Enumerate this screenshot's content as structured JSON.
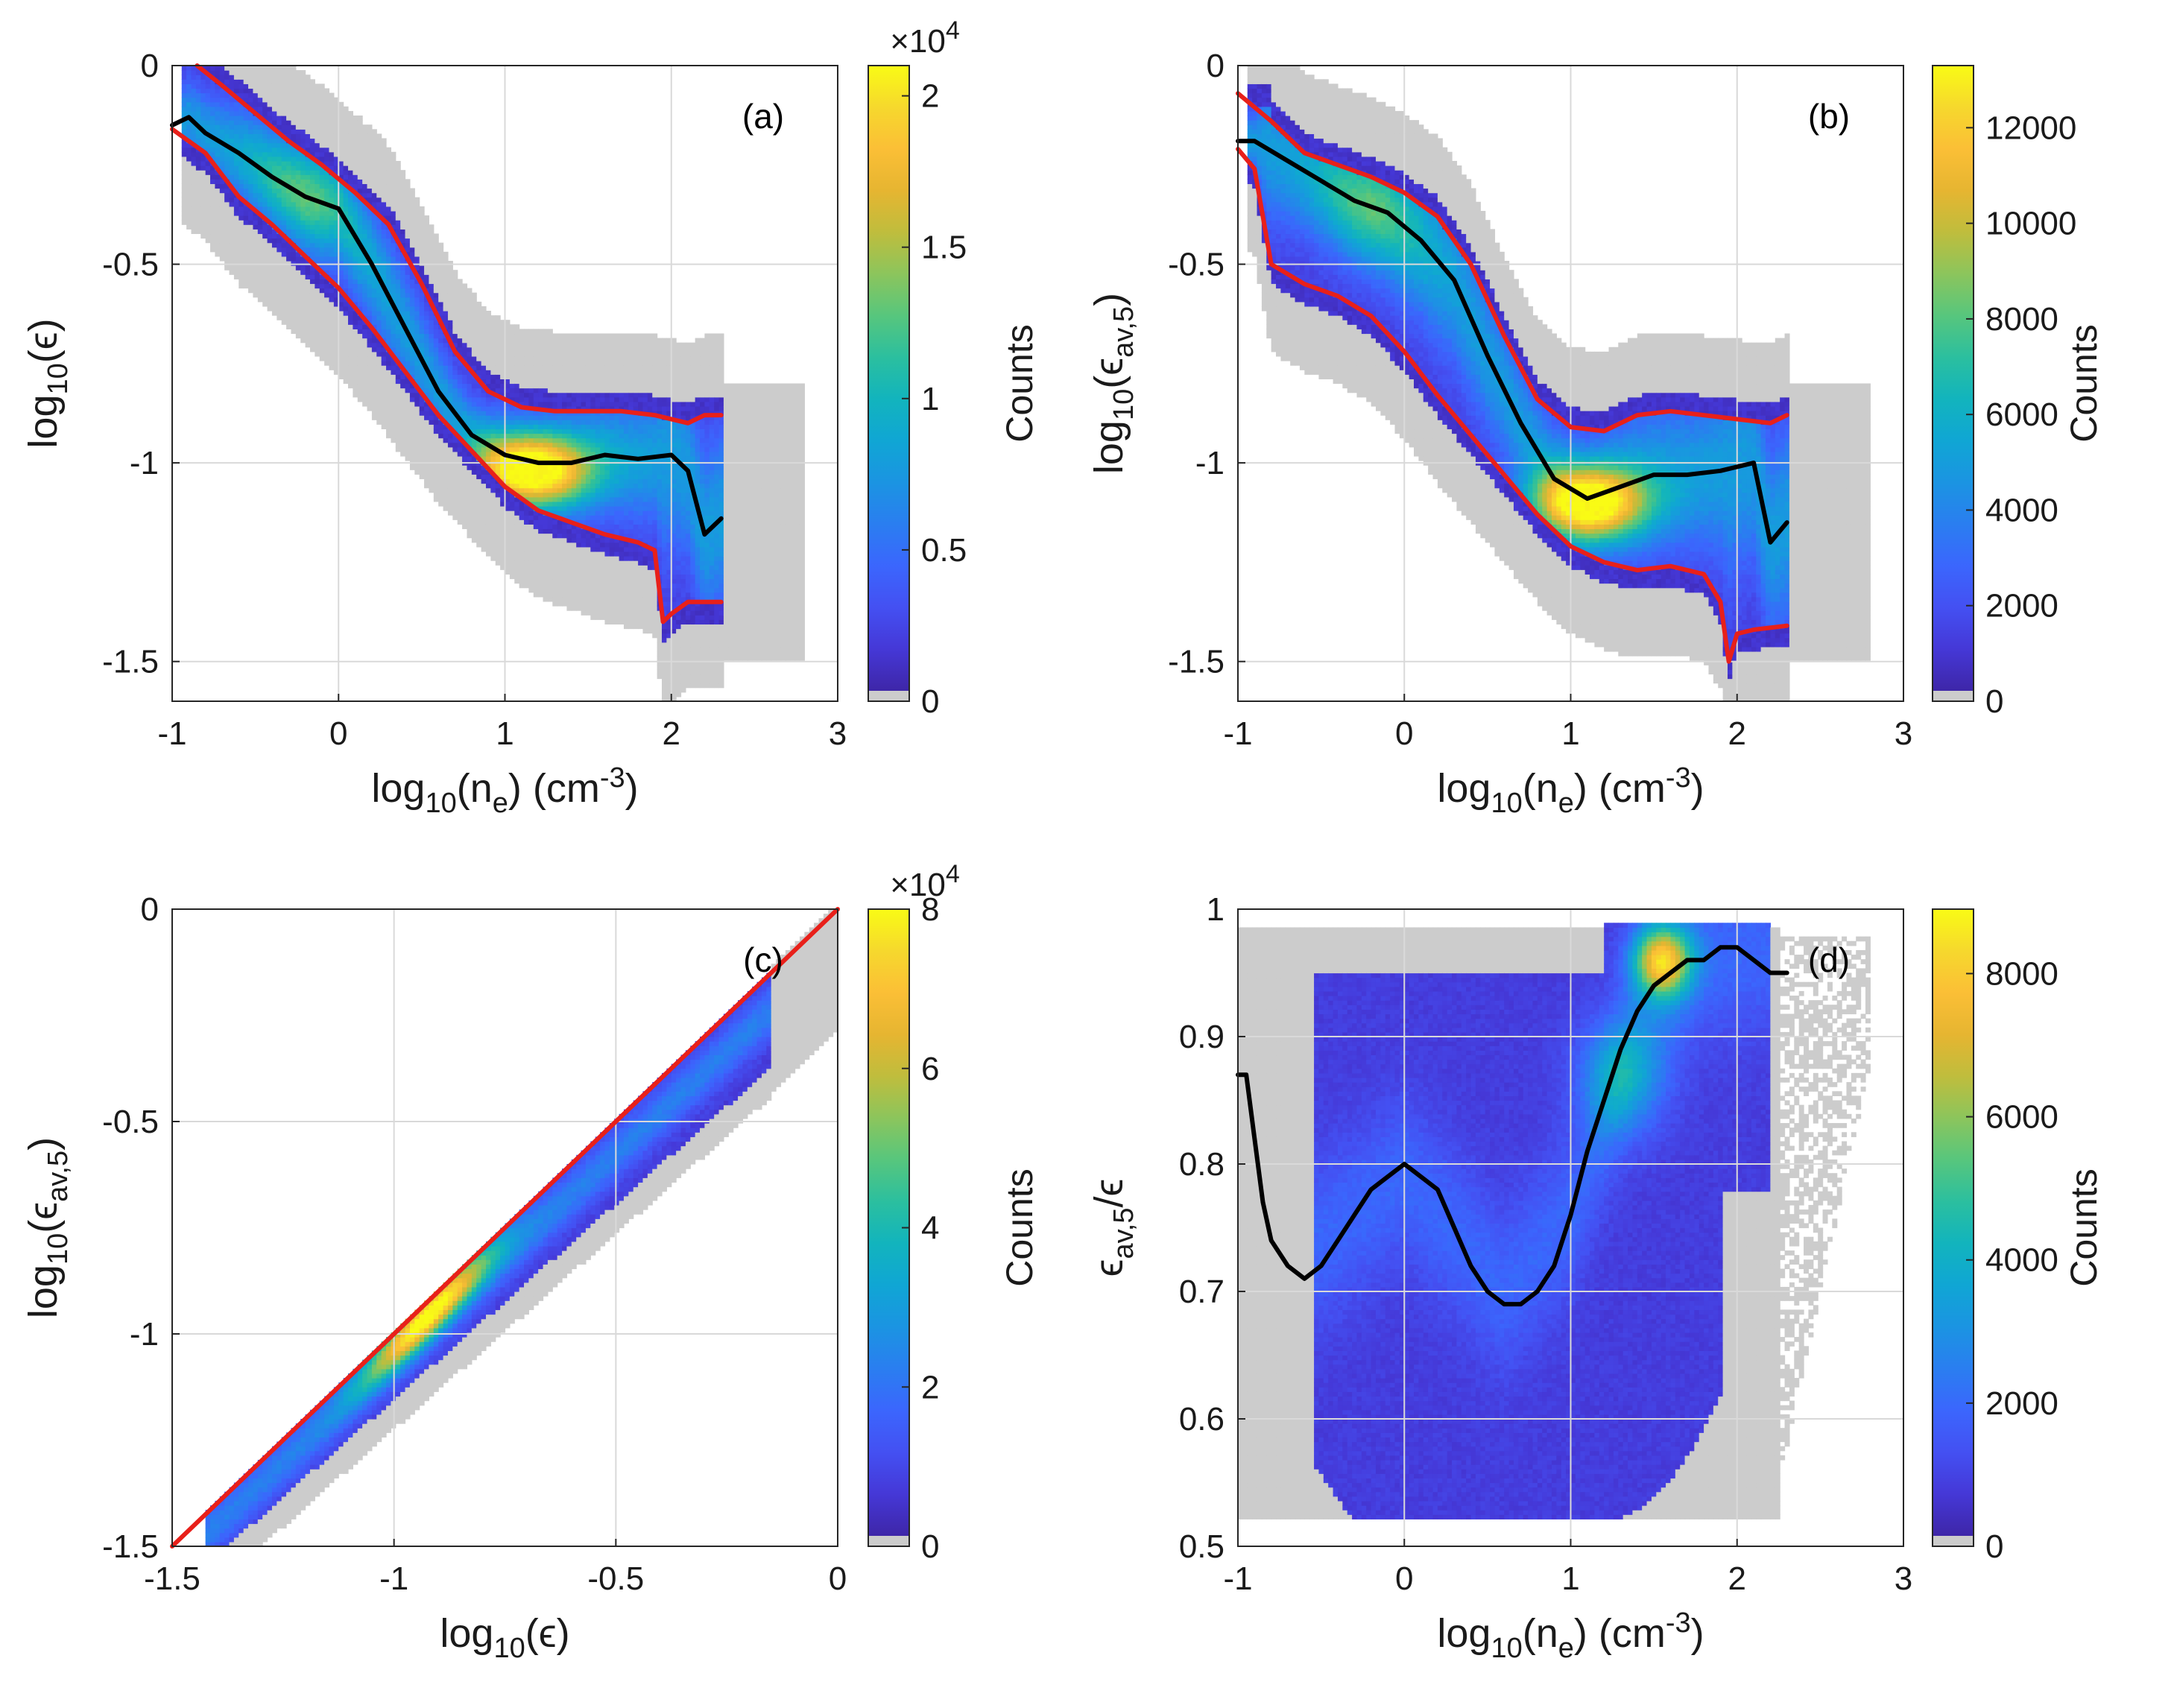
{
  "colors": {
    "background_bin": "#cccccc",
    "median_line": "#000000",
    "percentile_line": "#e8201a",
    "identity_line": "#e8201a",
    "parula": [
      "#3e26a8",
      "#4538d7",
      "#4450f2",
      "#3b66fd",
      "#2a7ef0",
      "#1b94e2",
      "#10a6d4",
      "#12b4bd",
      "#2bbf9f",
      "#57c67d",
      "#8cc55c",
      "#bfbd3d",
      "#e6b531",
      "#fbbf36",
      "#f6d82d",
      "#f9fb15"
    ]
  },
  "chart_data": [
    {
      "id": "a",
      "type": "heatmap",
      "panel_label": "(a)",
      "xlabel": {
        "base": "log",
        "sub": "10",
        "arg": "(n",
        "argsub": "e",
        "unit": ") (cm",
        "unitsup": "-3",
        "close": ")"
      },
      "ylabel": {
        "base": "log",
        "sub": "10",
        "arg": "(ϵ)"
      },
      "xlim": [
        -1,
        3
      ],
      "ylim": [
        -1.6,
        0
      ],
      "xticks": [
        "-1",
        "0",
        "1",
        "2",
        "3"
      ],
      "xtick_values": [
        -1,
        0,
        1,
        2,
        3
      ],
      "yticks": [
        "-1.5",
        "-1",
        "-0.5",
        "0"
      ],
      "ytick_values": [
        -1.5,
        -1,
        -0.5,
        0
      ],
      "colorbar": {
        "label": "Counts",
        "max": 21000,
        "ticks": [
          "0",
          "0.5",
          "1",
          "1.5",
          "2"
        ],
        "tick_values": [
          0,
          5000,
          10000,
          15000,
          20000
        ],
        "multiplier": "×10",
        "multiplier_exp": "4"
      },
      "median_line": {
        "x": [
          -1.0,
          -0.9,
          -0.8,
          -0.6,
          -0.4,
          -0.2,
          0.0,
          0.2,
          0.4,
          0.6,
          0.8,
          1.0,
          1.2,
          1.4,
          1.6,
          1.8,
          2.0,
          2.1,
          2.2,
          2.3
        ],
        "y": [
          -0.15,
          -0.13,
          -0.17,
          -0.22,
          -0.28,
          -0.33,
          -0.36,
          -0.5,
          -0.66,
          -0.82,
          -0.93,
          -0.98,
          -1.0,
          -1.0,
          -0.98,
          -0.99,
          -0.98,
          -1.02,
          -1.18,
          -1.14
        ]
      },
      "upper_line": {
        "x": [
          -0.85,
          -0.7,
          -0.5,
          -0.3,
          -0.1,
          0.1,
          0.3,
          0.5,
          0.7,
          0.9,
          1.1,
          1.3,
          1.5,
          1.7,
          1.9,
          2.1,
          2.2,
          2.3
        ],
        "y": [
          0.0,
          -0.05,
          -0.12,
          -0.19,
          -0.25,
          -0.32,
          -0.4,
          -0.55,
          -0.72,
          -0.82,
          -0.86,
          -0.87,
          -0.87,
          -0.87,
          -0.88,
          -0.9,
          -0.88,
          -0.88
        ]
      },
      "lower_line": {
        "x": [
          -1.0,
          -0.8,
          -0.6,
          -0.4,
          -0.2,
          0.0,
          0.2,
          0.4,
          0.6,
          0.8,
          1.0,
          1.2,
          1.4,
          1.6,
          1.8,
          1.9,
          1.95,
          2.0,
          2.1,
          2.3
        ],
        "y": [
          -0.16,
          -0.22,
          -0.33,
          -0.4,
          -0.48,
          -0.56,
          -0.66,
          -0.77,
          -0.88,
          -0.97,
          -1.06,
          -1.12,
          -1.15,
          -1.18,
          -1.2,
          -1.22,
          -1.4,
          -1.38,
          -1.35,
          -1.35
        ]
      }
    },
    {
      "id": "b",
      "type": "heatmap",
      "panel_label": "(b)",
      "xlabel": {
        "base": "log",
        "sub": "10",
        "arg": "(n",
        "argsub": "e",
        "unit": ") (cm",
        "unitsup": "-3",
        "close": ")"
      },
      "ylabel": {
        "base": "log",
        "sub": "10",
        "arg": "(ϵ",
        "argsub": "av,5",
        "close": ")"
      },
      "xlim": [
        -1,
        3
      ],
      "ylim": [
        -1.6,
        0
      ],
      "xticks": [
        "-1",
        "0",
        "1",
        "2",
        "3"
      ],
      "xtick_values": [
        -1,
        0,
        1,
        2,
        3
      ],
      "yticks": [
        "-1.5",
        "-1",
        "-0.5",
        "0"
      ],
      "ytick_values": [
        -1.5,
        -1,
        -0.5,
        0
      ],
      "colorbar": {
        "label": "Counts",
        "max": 13300,
        "ticks": [
          "0",
          "2000",
          "4000",
          "6000",
          "8000",
          "10000",
          "12000"
        ],
        "tick_values": [
          0,
          2000,
          4000,
          6000,
          8000,
          10000,
          12000
        ]
      },
      "median_line": {
        "x": [
          -1.0,
          -0.9,
          -0.7,
          -0.5,
          -0.3,
          -0.1,
          0.1,
          0.3,
          0.5,
          0.7,
          0.9,
          1.1,
          1.3,
          1.5,
          1.7,
          1.9,
          2.1,
          2.2,
          2.3
        ],
        "y": [
          -0.19,
          -0.19,
          -0.24,
          -0.29,
          -0.34,
          -0.37,
          -0.44,
          -0.54,
          -0.73,
          -0.9,
          -1.04,
          -1.09,
          -1.06,
          -1.03,
          -1.03,
          -1.02,
          -1.0,
          -1.2,
          -1.15
        ]
      },
      "upper_line": {
        "x": [
          -1.0,
          -0.8,
          -0.6,
          -0.4,
          -0.2,
          0.0,
          0.2,
          0.4,
          0.6,
          0.8,
          1.0,
          1.2,
          1.4,
          1.6,
          1.8,
          2.0,
          2.2,
          2.3
        ],
        "y": [
          -0.07,
          -0.14,
          -0.22,
          -0.25,
          -0.28,
          -0.32,
          -0.38,
          -0.5,
          -0.68,
          -0.84,
          -0.91,
          -0.92,
          -0.88,
          -0.87,
          -0.88,
          -0.89,
          -0.9,
          -0.88
        ]
      },
      "lower_line": {
        "x": [
          -1.0,
          -0.9,
          -0.8,
          -0.6,
          -0.4,
          -0.2,
          0.0,
          0.2,
          0.4,
          0.6,
          0.8,
          1.0,
          1.2,
          1.4,
          1.6,
          1.8,
          1.9,
          1.95,
          2.0,
          2.1,
          2.3
        ],
        "y": [
          -0.21,
          -0.26,
          -0.5,
          -0.55,
          -0.58,
          -0.63,
          -0.72,
          -0.83,
          -0.93,
          -1.03,
          -1.13,
          -1.21,
          -1.25,
          -1.27,
          -1.26,
          -1.28,
          -1.35,
          -1.5,
          -1.43,
          -1.42,
          -1.41
        ]
      }
    },
    {
      "id": "c",
      "type": "heatmap",
      "panel_label": "(c)",
      "xlabel": {
        "base": "log",
        "sub": "10",
        "arg": "(ϵ)"
      },
      "ylabel": {
        "base": "log",
        "sub": "10",
        "arg": "(ϵ",
        "argsub": "av,5",
        "close": ")"
      },
      "xlim": [
        -1.5,
        0
      ],
      "ylim": [
        -1.5,
        0
      ],
      "xticks": [
        "-1.5",
        "-1",
        "-0.5",
        "0"
      ],
      "xtick_values": [
        -1.5,
        -1,
        -0.5,
        0
      ],
      "yticks": [
        "-1.5",
        "-1",
        "-0.5",
        "0"
      ],
      "ytick_values": [
        -1.5,
        -1,
        -0.5,
        0
      ],
      "colorbar": {
        "label": "Counts",
        "max": 80000,
        "ticks": [
          "0",
          "2",
          "4",
          "6",
          "8"
        ],
        "tick_values": [
          0,
          20000,
          40000,
          60000,
          80000
        ],
        "multiplier": "×10",
        "multiplier_exp": "4"
      },
      "identity_line": {
        "x": [
          -1.5,
          0
        ],
        "y": [
          -1.5,
          0
        ]
      }
    },
    {
      "id": "d",
      "type": "heatmap",
      "panel_label": "(d)",
      "xlabel": {
        "base": "log",
        "sub": "10",
        "arg": "(n",
        "argsub": "e",
        "unit": ") (cm",
        "unitsup": "-3",
        "close": ")"
      },
      "ylabel": {
        "base": "ϵ",
        "sub": "av,5",
        "arg": "/ϵ"
      },
      "xlim": [
        -1,
        3
      ],
      "ylim": [
        0.5,
        1
      ],
      "xticks": [
        "-1",
        "0",
        "1",
        "2",
        "3"
      ],
      "xtick_values": [
        -1,
        0,
        1,
        2,
        3
      ],
      "yticks": [
        "0.5",
        "0.6",
        "0.7",
        "0.8",
        "0.9",
        "1"
      ],
      "ytick_values": [
        0.5,
        0.6,
        0.7,
        0.8,
        0.9,
        1.0
      ],
      "colorbar": {
        "label": "Counts",
        "max": 8900,
        "ticks": [
          "0",
          "2000",
          "4000",
          "6000",
          "8000"
        ],
        "tick_values": [
          0,
          2000,
          4000,
          6000,
          8000
        ]
      },
      "median_line": {
        "x": [
          -1.0,
          -0.95,
          -0.9,
          -0.85,
          -0.8,
          -0.7,
          -0.6,
          -0.5,
          -0.4,
          -0.3,
          -0.2,
          -0.1,
          0.0,
          0.1,
          0.2,
          0.3,
          0.4,
          0.5,
          0.6,
          0.7,
          0.8,
          0.9,
          1.0,
          1.1,
          1.2,
          1.3,
          1.4,
          1.5,
          1.6,
          1.7,
          1.8,
          1.9,
          2.0,
          2.1,
          2.2,
          2.3
        ],
        "y": [
          0.87,
          0.87,
          0.82,
          0.77,
          0.74,
          0.72,
          0.71,
          0.72,
          0.74,
          0.76,
          0.78,
          0.79,
          0.8,
          0.79,
          0.78,
          0.75,
          0.72,
          0.7,
          0.69,
          0.69,
          0.7,
          0.72,
          0.76,
          0.81,
          0.85,
          0.89,
          0.92,
          0.94,
          0.95,
          0.96,
          0.96,
          0.97,
          0.97,
          0.96,
          0.95,
          0.95
        ]
      }
    }
  ]
}
